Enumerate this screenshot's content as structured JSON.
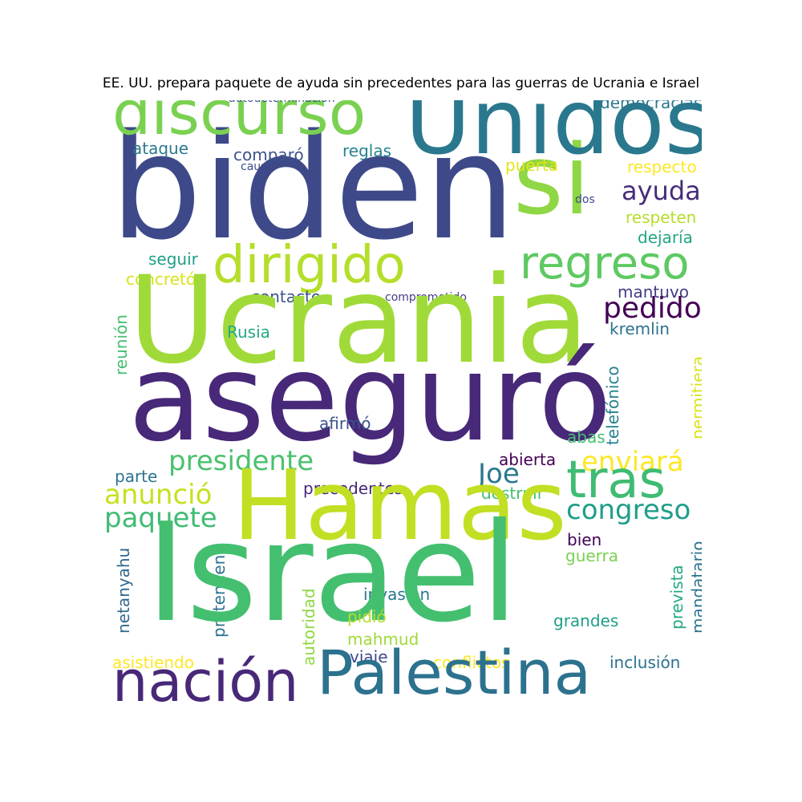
{
  "title": "EE. UU. prepara paquete de ayuda sin precedentes para las guerras de Ucrania e Israel",
  "palette": [
    "#440154",
    "#482878",
    "#3e4989",
    "#31688e",
    "#26828e",
    "#1f9e89",
    "#35b779",
    "#6ece58",
    "#b5de2b",
    "#fde725"
  ],
  "words": [
    {
      "text": "biden",
      "color": "#3e4989"
    },
    {
      "text": "si",
      "color": "#8fd744"
    },
    {
      "text": "Unidos",
      "color": "#2a788e"
    },
    {
      "text": "discurso",
      "color": "#7ad151"
    },
    {
      "text": "autodeterminación",
      "color": "#3b528b"
    },
    {
      "text": "democracias",
      "color": "#2a788e"
    },
    {
      "text": "ataque",
      "color": "#2a788e"
    },
    {
      "text": "comparó",
      "color": "#3b528b"
    },
    {
      "text": "reglas",
      "color": "#26828e"
    },
    {
      "text": "causa",
      "color": "#3e4989"
    },
    {
      "text": "puerta",
      "color": "#e5e419"
    },
    {
      "text": "respecto",
      "color": "#fde725"
    },
    {
      "text": "ayuda",
      "color": "#472d7b"
    },
    {
      "text": "dos",
      "color": "#3e4989"
    },
    {
      "text": "respeten",
      "color": "#b5de2b"
    },
    {
      "text": "dejaría",
      "color": "#21a685"
    },
    {
      "text": "dirigido",
      "color": "#b5de2b"
    },
    {
      "text": "regreso",
      "color": "#5ec962"
    },
    {
      "text": "seguir",
      "color": "#1f9e89"
    },
    {
      "text": "concretó",
      "color": "#d8e219"
    },
    {
      "text": "mantuvo",
      "color": "#433e85"
    },
    {
      "text": "contacto",
      "color": "#3b528b"
    },
    {
      "text": "comprometido",
      "color": "#433e85"
    },
    {
      "text": "Ucrania",
      "color": "#a0da39"
    },
    {
      "text": "pedido",
      "color": "#440154"
    },
    {
      "text": "Rusia",
      "color": "#22a884"
    },
    {
      "text": "kremlin",
      "color": "#2c728e"
    },
    {
      "text": "reunión",
      "color": "#44bf70"
    },
    {
      "text": "telefónico",
      "color": "#26828e"
    },
    {
      "text": "permitiera",
      "color": "#d8e219"
    },
    {
      "text": "aseguró",
      "color": "#482878"
    },
    {
      "text": "afirmó",
      "color": "#3b528b"
    },
    {
      "text": "abas",
      "color": "#44bf70"
    },
    {
      "text": "presidente",
      "color": "#4ac16d"
    },
    {
      "text": "Joe",
      "color": "#2a788e"
    },
    {
      "text": "enviará",
      "color": "#fde725"
    },
    {
      "text": "abierta",
      "color": "#440154"
    },
    {
      "text": "parte",
      "color": "#2c728e"
    },
    {
      "text": "tras",
      "color": "#3fbc73"
    },
    {
      "text": "anunció",
      "color": "#c8e020"
    },
    {
      "text": "precedentes",
      "color": "#482878"
    },
    {
      "text": "destruir",
      "color": "#44bf70"
    },
    {
      "text": "congreso",
      "color": "#1f9e89"
    },
    {
      "text": "paquete",
      "color": "#3fbc73"
    },
    {
      "text": "Hamas",
      "color": "#c2df23"
    },
    {
      "text": "bien",
      "color": "#440154"
    },
    {
      "text": "guerra",
      "color": "#7ad151"
    },
    {
      "text": "mandatario",
      "color": "#2c728e"
    },
    {
      "text": "netanyahu",
      "color": "#31688e"
    },
    {
      "text": "pretenden",
      "color": "#2c728e"
    },
    {
      "text": "autoridad",
      "color": "#8fd744"
    },
    {
      "text": "invasión",
      "color": "#2a788e"
    },
    {
      "text": "prevista",
      "color": "#22a884"
    },
    {
      "text": "Israel",
      "color": "#44bf70"
    },
    {
      "text": "pidió",
      "color": "#b5de2b"
    },
    {
      "text": "grandes",
      "color": "#1f9e89"
    },
    {
      "text": "mahmud",
      "color": "#a0da39"
    },
    {
      "text": "viaje",
      "color": "#3e4989"
    },
    {
      "text": "asistiendo",
      "color": "#fde725"
    },
    {
      "text": "conflictos",
      "color": "#fde725"
    },
    {
      "text": "inclusión",
      "color": "#2c728e"
    },
    {
      "text": "nación",
      "color": "#482878"
    },
    {
      "text": "Palestina",
      "color": "#2c728e"
    }
  ]
}
